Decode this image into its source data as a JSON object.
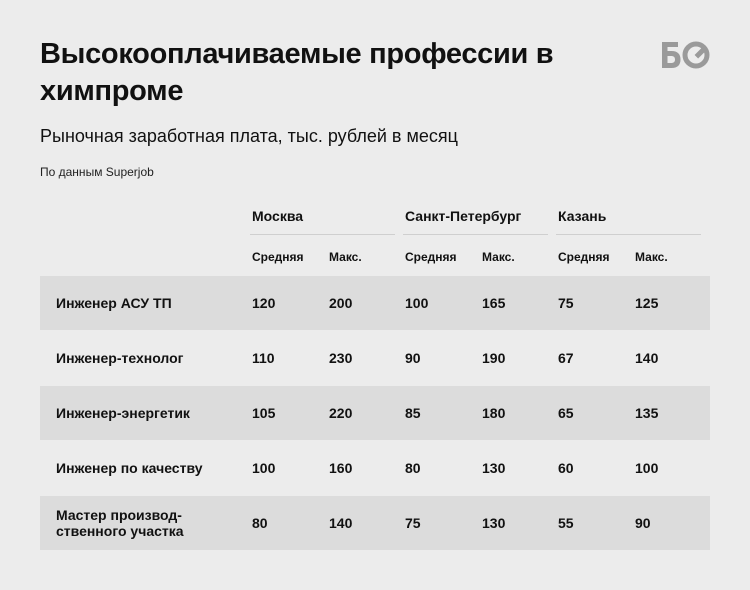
{
  "title": "Высокооплачиваемые профессии в химпроме",
  "subtitle": "Рыночная заработная плата, тыс. рублей в месяц",
  "source": "По данным Superjob",
  "logo": {
    "icon": "bo-logo-icon",
    "text": "БО"
  },
  "colors": {
    "background": "#ececec",
    "shaded_row": "#dcdcdc",
    "divider": "#cfcfcf",
    "logo": "#9a9a9a"
  },
  "chart_data": {
    "type": "table",
    "title": "Высокооплачиваемые профессии в химпроме",
    "subtitle": "Рыночная заработная плата, тыс. рублей в месяц",
    "cities": [
      "Москва",
      "Санкт-Петербург",
      "Казань"
    ],
    "column_labels": [
      "Средняя",
      "Макс."
    ],
    "rows": [
      {
        "label": "Инженер АСУ ТП",
        "values": [
          "120",
          "200",
          "100",
          "165",
          "75",
          "125"
        ]
      },
      {
        "label": "Инженер-технолог",
        "values": [
          "110",
          "230",
          "90",
          "190",
          "67",
          "140"
        ]
      },
      {
        "label": "Инженер-энергетик",
        "values": [
          "105",
          "220",
          "85",
          "180",
          "65",
          "135"
        ]
      },
      {
        "label": "Инженер по качеству",
        "values": [
          "100",
          "160",
          "80",
          "130",
          "60",
          "100"
        ]
      },
      {
        "label": "Мастер производ-\nственного участка",
        "values": [
          "80",
          "140",
          "75",
          "130",
          "55",
          "90"
        ]
      }
    ]
  }
}
